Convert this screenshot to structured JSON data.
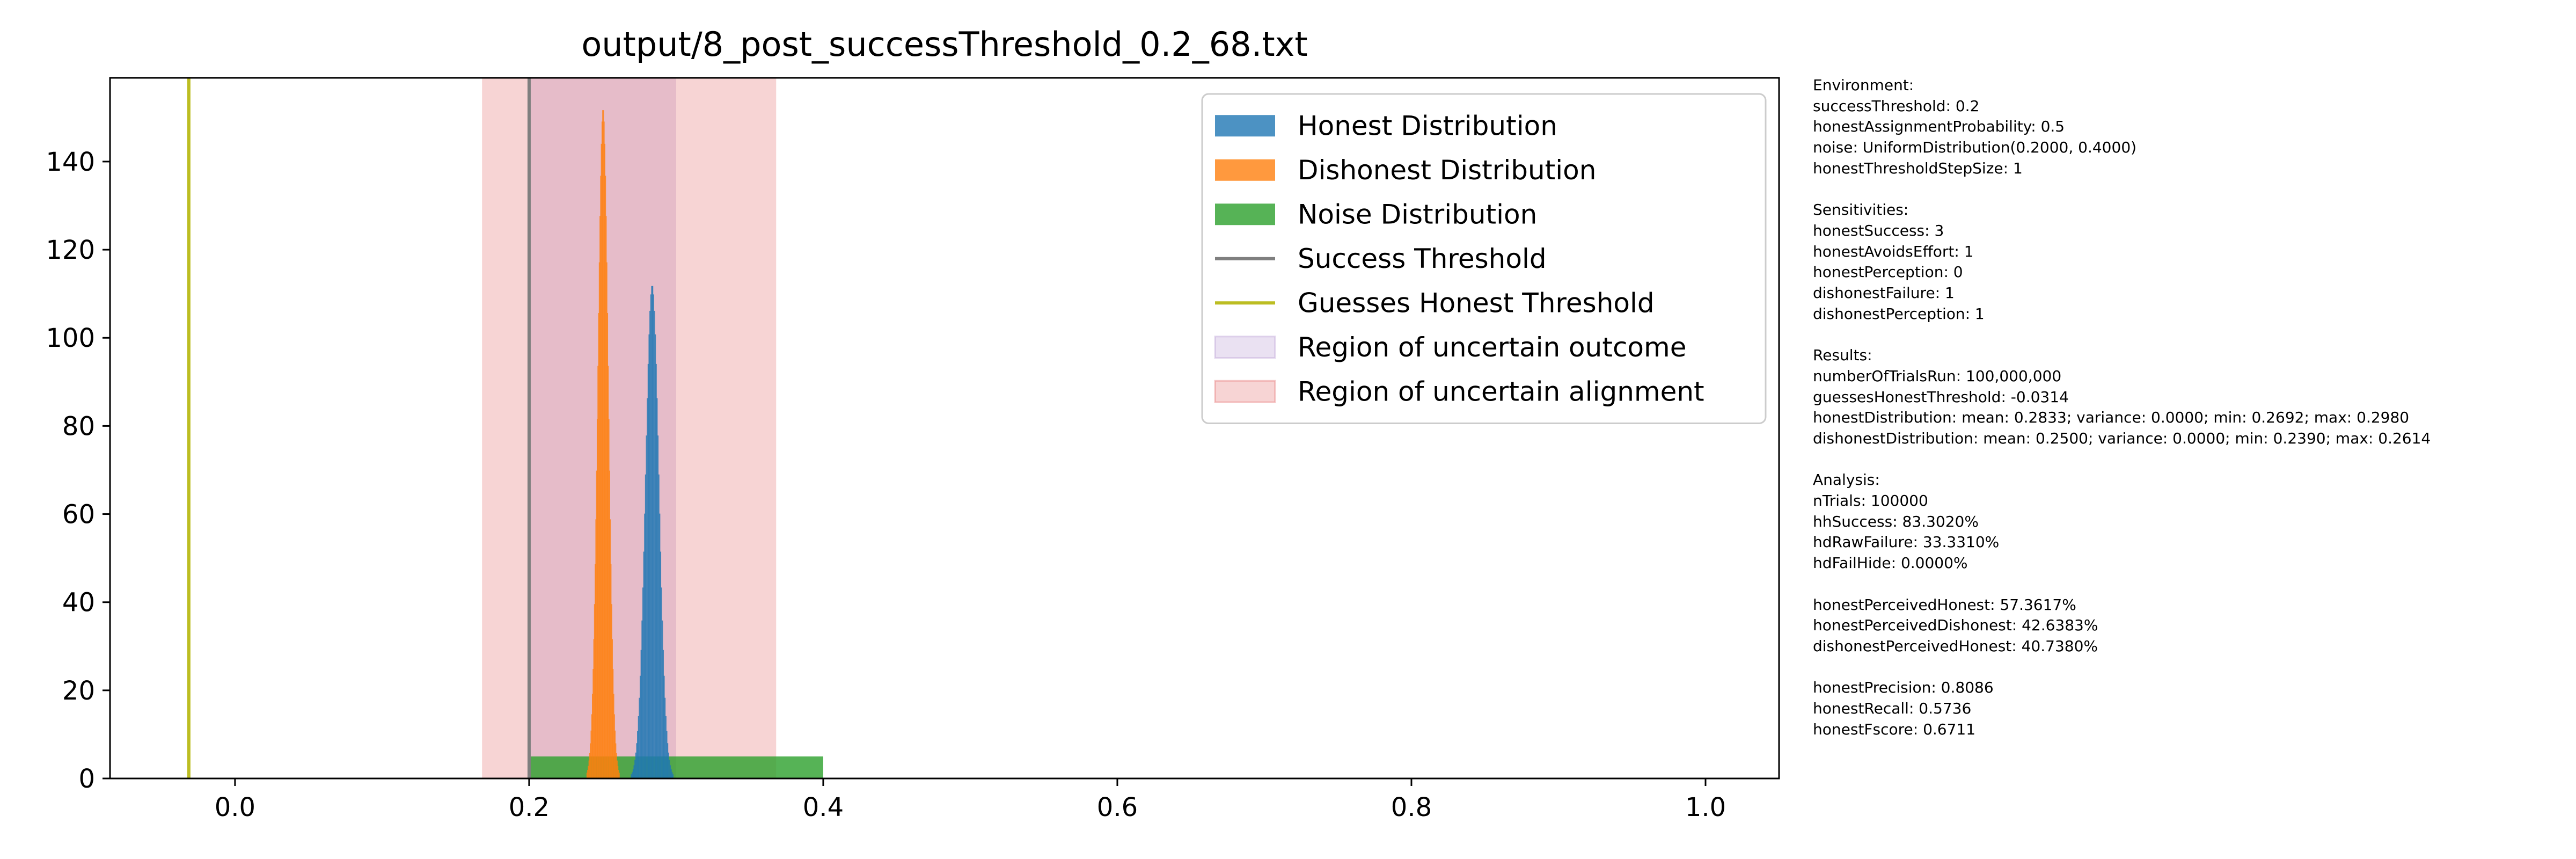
{
  "chart_data": {
    "type": "histogram",
    "title": "output/8_post_successThreshold_0.2_68.txt",
    "xlabel": "",
    "ylabel": "",
    "xlim": [
      -0.085,
      1.05
    ],
    "ylim": [
      0,
      159
    ],
    "x_ticks": [
      0.0,
      0.2,
      0.4,
      0.6,
      0.8,
      1.0
    ],
    "x_tick_labels": [
      "0.0",
      "0.2",
      "0.4",
      "0.6",
      "0.8",
      "1.0"
    ],
    "y_ticks": [
      0,
      20,
      40,
      60,
      80,
      100,
      120,
      140
    ],
    "y_tick_labels": [
      "0",
      "20",
      "40",
      "60",
      "80",
      "100",
      "120",
      "140"
    ],
    "grid": false,
    "legend_position": "upper right",
    "colors": {
      "honest": "#1f77b4",
      "dishonest": "#ff7f0e",
      "noise": "#2ca02c",
      "success_threshold": "#7f7f7f",
      "guesses_honest_threshold": "#bcbd22",
      "uncertain_outcome": "#9467bd",
      "uncertain_alignment": "#d62728"
    },
    "series": [
      {
        "name": "Honest Distribution",
        "kind": "histogram",
        "range": [
          0.2692,
          0.298
        ],
        "peak": 112,
        "mean": 0.2833
      },
      {
        "name": "Dishonest Distribution",
        "kind": "histogram",
        "range": [
          0.239,
          0.2614
        ],
        "peak": 152,
        "mean": 0.25
      },
      {
        "name": "Noise Distribution",
        "kind": "histogram",
        "range": [
          0.2,
          0.4
        ],
        "peak": 5
      },
      {
        "name": "Success Threshold",
        "kind": "vline",
        "x": 0.2
      },
      {
        "name": "Guesses Honest Threshold",
        "kind": "vline",
        "x": -0.0314
      },
      {
        "name": "Region of uncertain outcome",
        "kind": "vspan",
        "x": [
          0.2,
          0.3
        ]
      },
      {
        "name": "Region of uncertain alignment",
        "kind": "vspan",
        "x": [
          0.168,
          0.368
        ]
      }
    ]
  },
  "side_text": [
    [
      "Environment:",
      "successThreshold: 0.2",
      "honestAssignmentProbability: 0.5",
      "noise: UniformDistribution(0.2000, 0.4000)",
      "honestThresholdStepSize: 1"
    ],
    [
      "Sensitivities:",
      "honestSuccess: 3",
      "honestAvoidsEffort: 1",
      "honestPerception: 0",
      "dishonestFailure: 1",
      "dishonestPerception: 1"
    ],
    [
      "Results:",
      "numberOfTrialsRun: 100,000,000",
      "guessesHonestThreshold: -0.0314",
      "honestDistribution: mean: 0.2833; variance: 0.0000; min: 0.2692; max: 0.2980",
      "dishonestDistribution: mean: 0.2500; variance: 0.0000; min: 0.2390; max: 0.2614"
    ],
    [
      "Analysis:",
      "nTrials: 100000",
      "hhSuccess: 83.3020%",
      "hdRawFailure: 33.3310%",
      "hdFailHide: 0.0000%"
    ],
    [
      "honestPerceivedHonest: 57.3617%",
      "honestPerceivedDishonest: 42.6383%",
      "dishonestPerceivedHonest: 40.7380%"
    ],
    [
      "honestPrecision: 0.8086",
      "honestRecall: 0.5736",
      "honestFscore: 0.6711"
    ]
  ]
}
